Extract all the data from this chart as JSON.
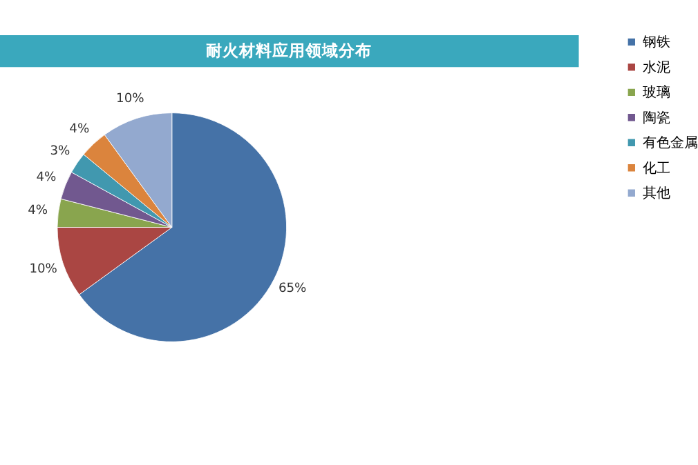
{
  "chart_data": {
    "type": "pie",
    "title": "耐火材料应用领域分布",
    "categories": [
      "钢铁",
      "水泥",
      "玻璃",
      "陶瓷",
      "有色金属",
      "化工",
      "其他"
    ],
    "values": [
      65,
      10,
      4,
      4,
      3,
      4,
      10
    ],
    "colors": [
      "#4572a7",
      "#aa4643",
      "#89a54e",
      "#71588f",
      "#4198af",
      "#db843d",
      "#93a9cf"
    ],
    "value_labels": [
      "65%",
      "10%",
      "4%",
      "4%",
      "3%",
      "4%",
      "10%"
    ],
    "legend": "right"
  }
}
